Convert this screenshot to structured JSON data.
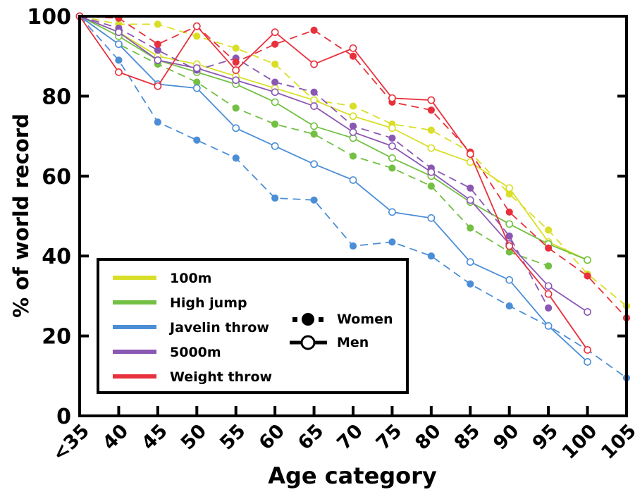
{
  "chart_data": {
    "type": "line",
    "title": "",
    "xlabel": "Age category",
    "ylabel": "% of world record",
    "categories": [
      "<35",
      "40",
      "45",
      "50",
      "55",
      "60",
      "65",
      "70",
      "75",
      "80",
      "85",
      "90",
      "95",
      "100",
      "105"
    ],
    "ylim": [
      0,
      100
    ],
    "yticks": [
      0,
      20,
      40,
      60,
      80,
      100
    ],
    "grid": false,
    "legend_position": "bottom-left",
    "style_legend": {
      "women": "Women",
      "men": "Men"
    },
    "series": [
      {
        "name": "100m",
        "sex": "Women",
        "color": "#d9df27",
        "dashed": true,
        "filled": true,
        "values": [
          100,
          98,
          98,
          95,
          92,
          88,
          79,
          77.5,
          73,
          71.5,
          66,
          55.5,
          46.5,
          35.5,
          27.5
        ]
      },
      {
        "name": "100m",
        "sex": "Men",
        "color": "#d9df27",
        "dashed": false,
        "filled": false,
        "values": [
          100,
          96,
          90,
          88,
          85,
          82,
          79,
          75,
          72,
          67,
          63.5,
          57,
          43.5,
          39,
          null
        ]
      },
      {
        "name": "High jump",
        "sex": "Women",
        "color": "#73c043",
        "dashed": true,
        "filled": true,
        "values": [
          100,
          93,
          88,
          83.5,
          77,
          73,
          70.5,
          65,
          62,
          57.5,
          47,
          41,
          37.5,
          null,
          null
        ]
      },
      {
        "name": "High jump",
        "sex": "Men",
        "color": "#73c043",
        "dashed": false,
        "filled": false,
        "values": [
          100,
          95,
          89,
          86,
          83,
          78.5,
          72.5,
          69.5,
          64.5,
          60,
          53.5,
          48,
          43,
          39,
          null
        ]
      },
      {
        "name": "Javelin throw",
        "sex": "Women",
        "color": "#4b8ed6",
        "dashed": true,
        "filled": true,
        "values": [
          100,
          89,
          73.5,
          69,
          64.5,
          54.5,
          54,
          42.5,
          43.5,
          40,
          33,
          27.5,
          22.5,
          16.5,
          9.5
        ]
      },
      {
        "name": "Javelin throw",
        "sex": "Men",
        "color": "#4b8ed6",
        "dashed": false,
        "filled": false,
        "values": [
          100,
          93,
          83,
          82,
          72,
          67.5,
          63,
          59,
          51,
          49.5,
          38.5,
          34,
          22.5,
          13.5,
          null
        ]
      },
      {
        "name": "5000m",
        "sex": "Women",
        "color": "#8a57b3",
        "dashed": true,
        "filled": true,
        "values": [
          100,
          97,
          91.5,
          86.5,
          89.5,
          83.5,
          81,
          72.5,
          69.5,
          62,
          57,
          45,
          27,
          null,
          null
        ]
      },
      {
        "name": "5000m",
        "sex": "Men",
        "color": "#8a57b3",
        "dashed": false,
        "filled": false,
        "values": [
          100,
          96,
          89,
          87,
          84,
          81,
          77.5,
          71,
          67.5,
          61,
          54,
          43,
          32.5,
          26,
          null
        ]
      },
      {
        "name": "Weight throw",
        "sex": "Women",
        "color": "#e8313c",
        "dashed": true,
        "filled": true,
        "values": [
          100,
          99.5,
          93,
          97.5,
          88.5,
          93,
          96.5,
          90,
          78.5,
          76.5,
          66,
          51,
          42,
          35,
          24.5
        ]
      },
      {
        "name": "Weight throw",
        "sex": "Men",
        "color": "#e8313c",
        "dashed": false,
        "filled": false,
        "values": [
          100,
          86,
          82.5,
          97.5,
          86.5,
          96,
          88,
          92,
          79.5,
          79,
          65.5,
          42.5,
          30.5,
          16.5,
          null
        ]
      }
    ],
    "legend": [
      {
        "label": "100m",
        "color": "#d9df27"
      },
      {
        "label": "High jump",
        "color": "#73c043"
      },
      {
        "label": "Javelin throw",
        "color": "#4b8ed6"
      },
      {
        "label": "5000m",
        "color": "#8a57b3"
      },
      {
        "label": "Weight throw",
        "color": "#e8313c"
      }
    ]
  }
}
